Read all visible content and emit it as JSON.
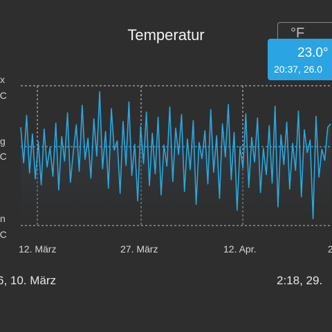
{
  "title": "Temperatur",
  "unit_toggle": {
    "label": "°F"
  },
  "tooltip": {
    "value": "23.0°",
    "time": "20:37,  26.0"
  },
  "y_labels": {
    "max_label": "x",
    "max_unit": "°C",
    "avg_label": "g",
    "avg_unit": "°C",
    "min_label": "n",
    "min_unit": "°C"
  },
  "x_ticks": [
    "12. März",
    "27. März",
    "12. Apr.",
    "2"
  ],
  "footer": {
    "left": "6,  10. März",
    "right": "2:18,  29."
  },
  "colors": {
    "line": "#29a8e0",
    "fill": "#3a4a58",
    "grid": "#9a9a9a",
    "tooltip": "#2aa4e3"
  },
  "chart_data": {
    "type": "line",
    "series": [
      {
        "values": [
          22.6,
          18.4,
          24.0,
          17.2,
          21.8,
          16.5,
          20.9,
          15.8,
          22.4,
          17.9,
          20.2,
          16.8,
          23.1,
          15.2,
          21.5,
          18.6,
          24.3,
          16.1,
          19.8,
          22.9,
          17.4,
          25.2,
          18.8,
          21.3,
          16.6,
          23.6,
          19.2,
          26.8,
          17.7,
          22.1,
          15.4,
          24.8,
          19.9,
          21.0,
          14.8,
          23.3,
          18.1,
          25.6,
          16.9,
          20.6,
          13.9,
          22.7,
          18.3,
          24.4,
          15.7,
          21.9,
          17.1,
          23.8,
          14.6,
          20.5,
          18.0,
          25.0,
          16.2,
          22.5,
          19.4,
          24.1,
          15.0,
          21.2,
          17.6,
          23.4,
          13.5,
          20.8,
          18.9,
          22.2,
          15.9,
          24.7,
          17.3,
          21.6,
          14.2,
          23.0,
          19.1,
          25.3,
          16.4,
          22.0,
          12.8,
          20.3,
          17.8,
          24.2,
          15.5,
          21.4,
          18.5,
          23.7,
          14.9,
          20.1,
          17.0,
          22.8,
          16.0,
          25.1,
          13.2,
          21.7,
          18.2,
          23.2,
          15.3,
          20.7,
          17.5,
          24.5,
          14.4,
          22.3,
          19.6,
          21.1,
          11.8,
          23.9,
          16.7,
          20.0,
          18.7,
          22.6,
          23.0
        ]
      }
    ],
    "ylim": [
      11.0,
      27.5
    ],
    "reference_lines": {
      "max": 27.5,
      "avg": 20.3,
      "min": 11.0
    }
  }
}
